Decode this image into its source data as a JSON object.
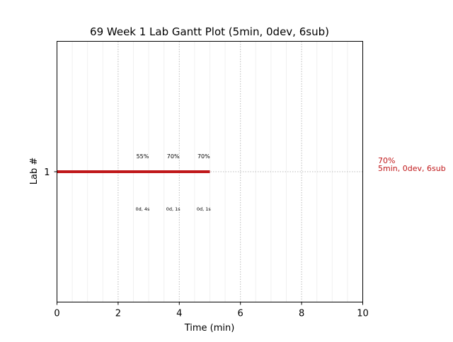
{
  "chart_data": {
    "type": "gantt",
    "title": "69 Week 1 Lab Gantt Plot (5min, 0dev, 6sub)",
    "xlabel": "Time (min)",
    "ylabel": "Lab #",
    "xlim": [
      0,
      10
    ],
    "ylim": [
      0,
      2
    ],
    "xticks": [
      "0",
      "2",
      "4",
      "6",
      "8",
      "10"
    ],
    "yticks": [
      "1"
    ],
    "grid": true,
    "bar_color": "#c0181a",
    "bars": [
      {
        "lab": 1,
        "start": 0,
        "end": 5
      }
    ],
    "top_annotations": [
      {
        "x": 2.8,
        "text": "55%"
      },
      {
        "x": 3.8,
        "text": "70%"
      },
      {
        "x": 4.8,
        "text": "70%"
      }
    ],
    "bottom_annotations": [
      {
        "x": 2.8,
        "text": "0d, 4s"
      },
      {
        "x": 3.8,
        "text": "0d, 1s"
      },
      {
        "x": 4.8,
        "text": "0d, 1s"
      }
    ],
    "side_label": {
      "line1": "70%",
      "line2": "5min, 0dev, 6sub",
      "color": "#c0181a"
    }
  }
}
